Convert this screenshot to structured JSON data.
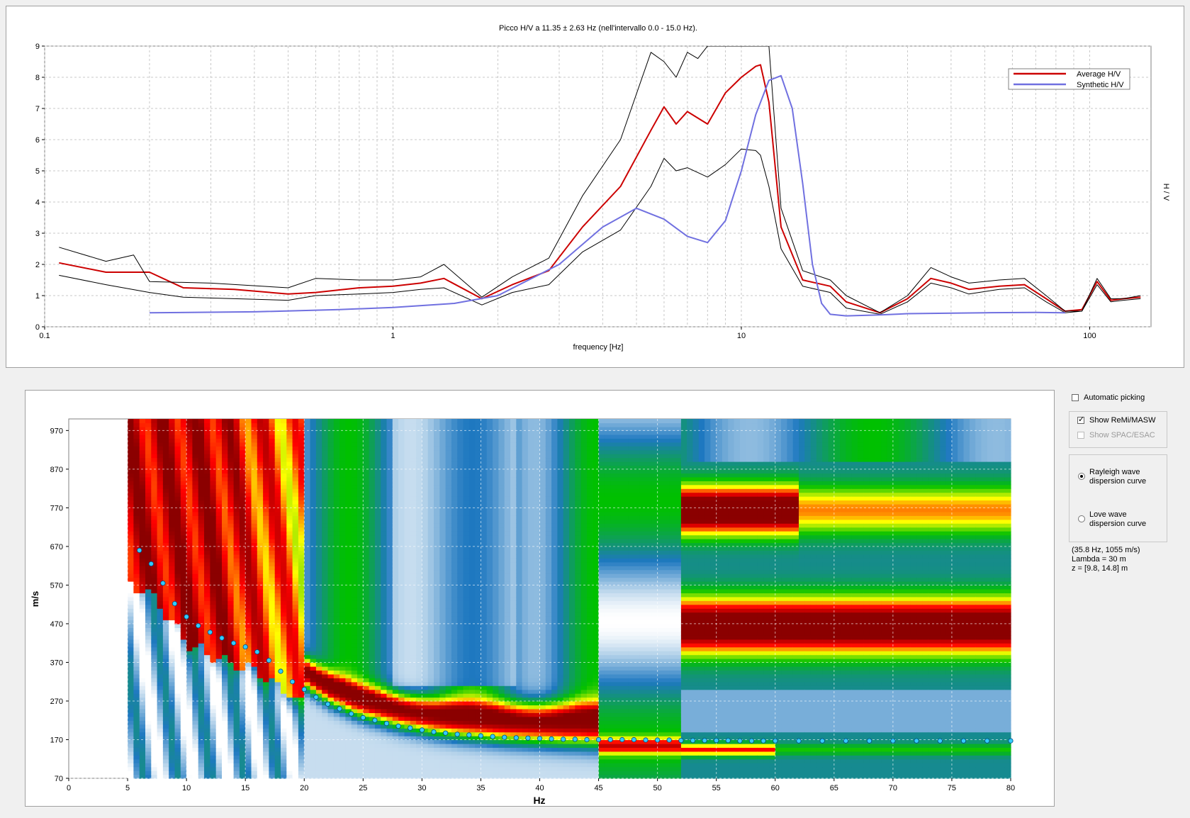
{
  "chart_data": [
    {
      "type": "line",
      "title": "Picco H/V a 11.35 ± 2.63 Hz (nell'intervallo 0.0 - 15.0 Hz).",
      "xlabel": "frequency [Hz]",
      "ylabel": "H / V",
      "xscale": "log",
      "xlim": [
        0.1,
        150
      ],
      "ylim": [
        0,
        9
      ],
      "xticks": [
        "0.1",
        "1",
        "10",
        "100"
      ],
      "yticks": [
        "0",
        "1",
        "2",
        "3",
        "4",
        "5",
        "6",
        "7",
        "8",
        "9"
      ],
      "grid": true,
      "legend_position": "top-right",
      "series": [
        {
          "name": "Average H/V",
          "color": "#cc0000",
          "x": [
            0.11,
            0.15,
            0.2,
            0.25,
            0.35,
            0.5,
            0.6,
            0.8,
            1.0,
            1.2,
            1.4,
            1.8,
            2.2,
            2.8,
            3.5,
            4.5,
            5.5,
            6.0,
            6.5,
            7.0,
            8.0,
            9.0,
            10.0,
            11.0,
            11.35,
            12.0,
            13.0,
            15.0,
            18.0,
            20.0,
            25.0,
            30.0,
            35.0,
            40.0,
            45.0,
            55.0,
            65.0,
            75.0,
            85.0,
            95.0,
            105.0,
            115.0,
            125.0,
            140.0
          ],
          "y": [
            2.05,
            1.75,
            1.75,
            1.25,
            1.2,
            1.05,
            1.1,
            1.25,
            1.3,
            1.4,
            1.55,
            0.9,
            1.35,
            1.8,
            3.2,
            4.5,
            6.3,
            7.05,
            6.5,
            6.9,
            6.5,
            7.5,
            8.0,
            8.35,
            8.4,
            7.2,
            3.2,
            1.5,
            1.3,
            0.8,
            0.45,
            0.9,
            1.55,
            1.4,
            1.2,
            1.3,
            1.35,
            0.9,
            0.5,
            0.55,
            1.45,
            0.85,
            0.9,
            0.95
          ]
        },
        {
          "name": "",
          "color": "#000000",
          "x": [
            0.11,
            0.15,
            0.18,
            0.2,
            0.3,
            0.5,
            0.6,
            0.8,
            1.0,
            1.2,
            1.4,
            1.8,
            2.2,
            2.8,
            3.5,
            4.5,
            5.5,
            6.0,
            6.5,
            7.0,
            7.5,
            8.0,
            9.0,
            10.0,
            11.0,
            11.5,
            12.0,
            13.0,
            15.0,
            18.0,
            20.0,
            25.0,
            30.0,
            35.0,
            40.0,
            45.0,
            55.0,
            65.0,
            75.0,
            85.0,
            95.0,
            105.0,
            115.0,
            125.0,
            140.0
          ],
          "y": [
            2.55,
            2.1,
            2.3,
            1.45,
            1.4,
            1.25,
            1.55,
            1.5,
            1.5,
            1.6,
            2.0,
            0.95,
            1.6,
            2.2,
            4.2,
            6.0,
            8.8,
            8.5,
            8.0,
            8.8,
            8.6,
            9.0,
            9.0,
            9.0,
            9.0,
            9.0,
            9.0,
            3.8,
            1.8,
            1.5,
            1.0,
            0.45,
            1.0,
            1.9,
            1.6,
            1.4,
            1.5,
            1.55,
            1.0,
            0.5,
            0.5,
            1.55,
            0.9,
            0.9,
            1.0
          ]
        },
        {
          "name": "",
          "color": "#000000",
          "x": [
            0.11,
            0.15,
            0.2,
            0.25,
            0.35,
            0.5,
            0.6,
            0.8,
            1.0,
            1.2,
            1.4,
            1.8,
            2.2,
            2.8,
            3.5,
            4.5,
            5.5,
            6.0,
            6.5,
            7.0,
            8.0,
            9.0,
            10.0,
            11.0,
            11.35,
            12.0,
            13.0,
            15.0,
            18.0,
            20.0,
            25.0,
            30.0,
            35.0,
            40.0,
            45.0,
            55.0,
            65.0,
            75.0,
            85.0,
            95.0,
            105.0,
            115.0,
            125.0,
            140.0
          ],
          "y": [
            1.65,
            1.35,
            1.1,
            0.95,
            0.9,
            0.85,
            1.0,
            1.05,
            1.1,
            1.2,
            1.25,
            0.7,
            1.1,
            1.35,
            2.4,
            3.1,
            4.5,
            5.4,
            5.0,
            5.1,
            4.8,
            5.2,
            5.7,
            5.65,
            5.5,
            4.5,
            2.5,
            1.3,
            1.1,
            0.6,
            0.4,
            0.8,
            1.4,
            1.25,
            1.05,
            1.2,
            1.25,
            0.8,
            0.45,
            0.5,
            1.35,
            0.8,
            0.85,
            0.9
          ]
        },
        {
          "name": "Synthetic H/V",
          "color": "#7070e0",
          "x": [
            0.2,
            0.4,
            0.7,
            1.0,
            1.5,
            2.0,
            3.0,
            4.0,
            5.0,
            6.0,
            7.0,
            8.0,
            9.0,
            10.0,
            11.0,
            12.0,
            13.0,
            14.0,
            15.0,
            16.0,
            17.0,
            18.0,
            20.0,
            25.0,
            30.0,
            50.0,
            70.0,
            85.0
          ],
          "y": [
            0.45,
            0.48,
            0.55,
            0.62,
            0.75,
            1.0,
            2.0,
            3.2,
            3.8,
            3.45,
            2.9,
            2.7,
            3.4,
            5.0,
            6.8,
            7.9,
            8.05,
            7.0,
            4.6,
            2.0,
            0.75,
            0.4,
            0.35,
            0.38,
            0.42,
            0.45,
            0.46,
            0.45
          ]
        }
      ]
    },
    {
      "type": "heatmap",
      "xlabel": "Hz",
      "ylabel": "m/s",
      "xlim": [
        0,
        80
      ],
      "ylim": [
        70,
        1000
      ],
      "xticks": [
        "0",
        "5",
        "10",
        "15",
        "20",
        "25",
        "30",
        "35",
        "40",
        "45",
        "50",
        "55",
        "60",
        "65",
        "70",
        "75",
        "80"
      ],
      "yticks": [
        "70",
        "170",
        "270",
        "370",
        "470",
        "570",
        "670",
        "770",
        "870",
        "970"
      ],
      "grid": true,
      "colorscale": [
        "#ffffff",
        "#1e78c0",
        "#00c000",
        "#ffff00",
        "#ff0000",
        "#8b0000"
      ],
      "picked_points": {
        "color": "#33ccff",
        "x": [
          6,
          7,
          8,
          9,
          10,
          11,
          12,
          13,
          14,
          15,
          16,
          17,
          18,
          19,
          20,
          21,
          22,
          23,
          24,
          25,
          26,
          27,
          28,
          29,
          30,
          31,
          32,
          33,
          34,
          35,
          36,
          37,
          38,
          39,
          40,
          41,
          42,
          43,
          44,
          45,
          46,
          47,
          48,
          49,
          50,
          51,
          52,
          53,
          54,
          55,
          56,
          57,
          58,
          59,
          60,
          62,
          64,
          66,
          68,
          70,
          72,
          74,
          76,
          78,
          80
        ],
        "y": [
          660,
          625,
          575,
          522,
          488,
          465,
          448,
          433,
          420,
          410,
          397,
          375,
          347,
          320,
          300,
          280,
          262,
          250,
          237,
          227,
          220,
          212,
          205,
          200,
          195,
          190,
          187,
          184,
          182,
          180,
          178,
          176,
          175,
          174,
          173,
          172,
          171,
          171,
          170,
          170,
          170,
          170,
          170,
          169,
          169,
          169,
          168,
          168,
          168,
          168,
          168,
          167,
          167,
          167,
          167,
          167,
          167,
          167,
          167,
          167,
          167,
          167,
          167,
          167,
          167
        ]
      }
    }
  ],
  "controls": {
    "automatic_picking": {
      "label": "Automatic picking",
      "checked": false
    },
    "show_remi": {
      "label": "Show ReMi/MASW",
      "checked": true
    },
    "show_spac": {
      "label": "Show SPAC/ESAC",
      "checked": false,
      "disabled": true
    },
    "rayleigh": {
      "label": "Rayleigh wave\ndispersion curve",
      "selected": true
    },
    "love": {
      "label": "Love wave\ndispersion curve",
      "selected": false
    }
  },
  "info": {
    "point": "(35.8 Hz, 1055 m/s)",
    "lambda": "Lambda = 30 m",
    "z": "z = [9.8, 14.8] m"
  }
}
